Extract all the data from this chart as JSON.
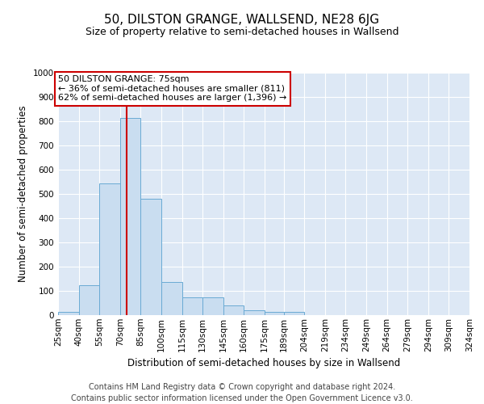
{
  "title": "50, DILSTON GRANGE, WALLSEND, NE28 6JG",
  "subtitle": "Size of property relative to semi-detached houses in Wallsend",
  "xlabel": "Distribution of semi-detached houses by size in Wallsend",
  "ylabel": "Number of semi-detached properties",
  "footer_line1": "Contains HM Land Registry data © Crown copyright and database right 2024.",
  "footer_line2": "Contains public sector information licensed under the Open Government Licence v3.0.",
  "bin_labels": [
    "25sqm",
    "40sqm",
    "55sqm",
    "70sqm",
    "85sqm",
    "100sqm",
    "115sqm",
    "130sqm",
    "145sqm",
    "160sqm",
    "175sqm",
    "189sqm",
    "204sqm",
    "219sqm",
    "234sqm",
    "249sqm",
    "264sqm",
    "279sqm",
    "294sqm",
    "309sqm",
    "324sqm"
  ],
  "bin_edges": [
    25,
    40,
    55,
    70,
    85,
    100,
    115,
    130,
    145,
    160,
    175,
    189,
    204,
    219,
    234,
    249,
    264,
    279,
    294,
    309,
    324
  ],
  "bar_heights": [
    14,
    125,
    545,
    815,
    480,
    137,
    75,
    75,
    40,
    20,
    14,
    12,
    0,
    0,
    0,
    0,
    0,
    0,
    0,
    0,
    8
  ],
  "bar_color": "#c9ddf0",
  "bar_edge_color": "#6aaad4",
  "property_size": 75,
  "pct_smaller": 36,
  "count_smaller": 811,
  "pct_larger": 62,
  "count_larger": 1396,
  "vline_color": "#cc0000",
  "annotation_box_color": "#cc0000",
  "ylim": [
    0,
    1000
  ],
  "background_color": "#dde8f5",
  "grid_color": "#ffffff",
  "title_fontsize": 11,
  "subtitle_fontsize": 9,
  "axis_label_fontsize": 8.5,
  "tick_fontsize": 7.5,
  "annotation_fontsize": 8,
  "footer_fontsize": 7
}
